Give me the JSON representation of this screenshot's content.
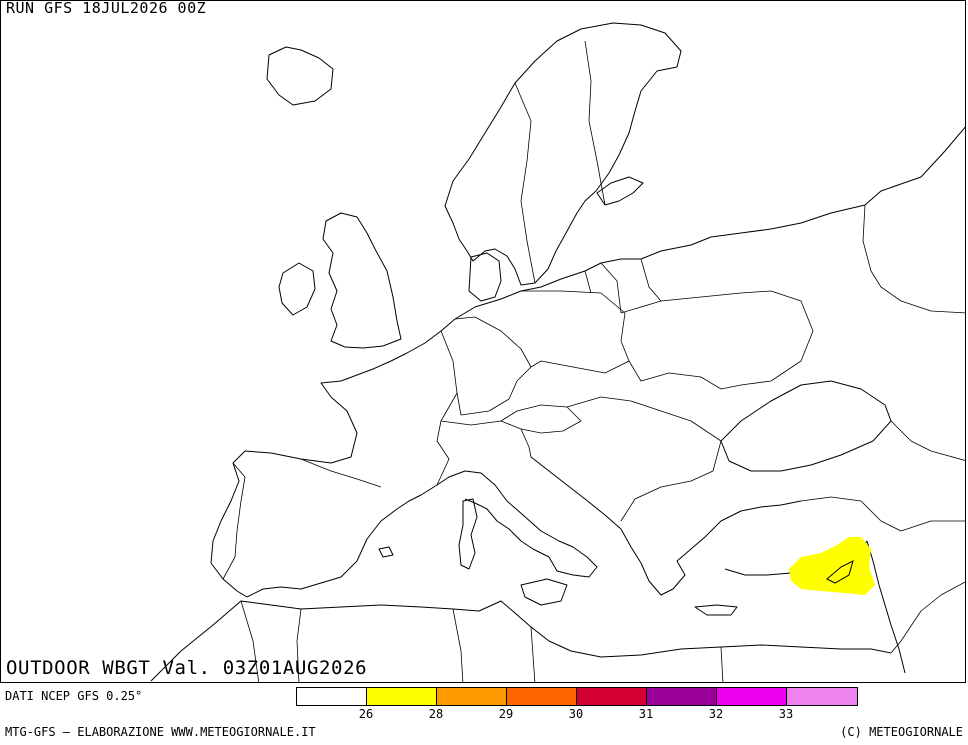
{
  "header": {
    "run_title": "RUN GFS 18JUL2026 00Z"
  },
  "map": {
    "field_title": "OUTDOOR WBGT Val. 03Z01AUG2026",
    "highlight_level": "26-28",
    "highlight_color": "#ffff00",
    "coast_color": "#000000"
  },
  "legend": {
    "source_label": "DATI NCEP GFS 0.25°",
    "colors": [
      "#ffffff",
      "#ffff00",
      "#ff9900",
      "#ff6600",
      "#d40033",
      "#990099",
      "#ee00ee",
      "#ee82ee"
    ],
    "ticks": [
      "26",
      "28",
      "29",
      "30",
      "31",
      "32",
      "33"
    ]
  },
  "footer": {
    "left": "MTG-GFS — ELABORAZIONE WWW.METEOGIORNALE.IT",
    "right": "(C) METEOGIORNALE"
  }
}
